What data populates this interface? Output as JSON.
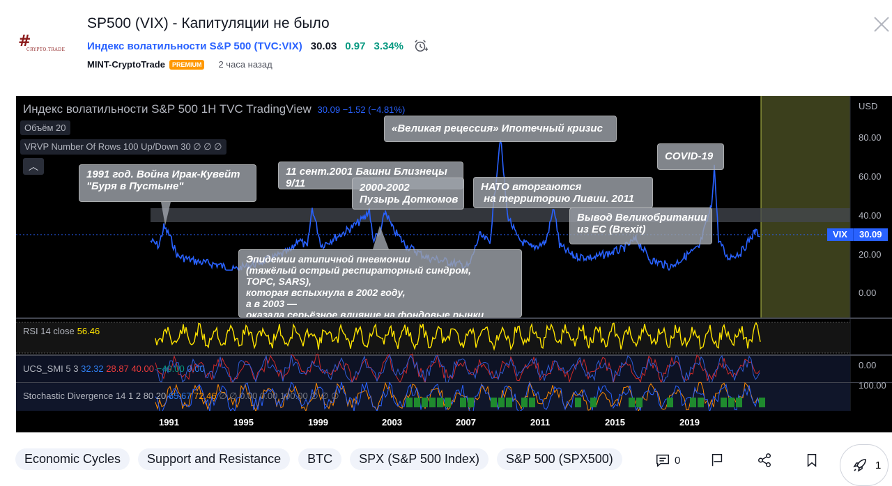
{
  "header": {
    "logo_text": "#",
    "logo_sub": "CRYPTO.TRADE",
    "title": "SP500 (VIX) - Капитуляции не было",
    "symbol": {
      "name": "Индекс волатильности S&P 500 (TVC:VIX)",
      "price": "30.03",
      "change": "0.97",
      "change_pct": "3.34%"
    },
    "author": "MINT-CryptoTrade",
    "badge": "PREMIUM",
    "time_ago": "2 часа назад"
  },
  "chart": {
    "legend_title": "Индекс волатильности S&P 500   1H   TVC   TradingView",
    "legend_value": "30.09  −1.52 (−4.81%)",
    "volume_label": "Объём 20",
    "vrvp_label": "VRVP Number Of Rows 100 Up/Down 30  ∅  ∅  ∅",
    "collapse_icon": "chevron-up-icon",
    "currency": "USD",
    "y_ticks": [
      "80.00",
      "60.00",
      "40.00",
      "20.00",
      "0.00"
    ],
    "vix_tag": {
      "name": "VIX",
      "value": "30.09"
    },
    "x_ticks": [
      "1991",
      "1995",
      "1999",
      "2003",
      "2007",
      "2011",
      "2015",
      "2019"
    ],
    "annotations": [
      {
        "id": "iraq",
        "text": "1991 год. Война Ирак-Кувейт\n\"Буря в Пустыне\""
      },
      {
        "id": "sept11",
        "text": "11 сент.2001 Башни Близнецы\n9/11"
      },
      {
        "id": "dotcom",
        "text": "2000-2002\nПузырь Доткомов"
      },
      {
        "id": "recession",
        "text": "«Великая рецессия» Ипотечный кризис"
      },
      {
        "id": "libya",
        "text": "НАТО вторгаются\n на территорию Ливии. 2011"
      },
      {
        "id": "covid",
        "text": "COVID-19"
      },
      {
        "id": "brexit",
        "text": "Вывод Великобритании\nиз ЕС (Brexit)"
      },
      {
        "id": "sars",
        "text": "Эпидемии атипичной пневмонии\n(тяжёлый острый респираторный синдром,\nТОРС, SARS),\nкоторая вспыхнула в 2002 году,\nа в 2003 —\nоказала серьёзное влияние на фондовые рынки"
      }
    ],
    "rsi": {
      "label": "RSI 14 close",
      "value": "56.46"
    },
    "ucs": {
      "label": "UCS_SMI 5 3",
      "v1": "32.32",
      "v2": "28.87",
      "v3": "40.00",
      "v4": "−40.00",
      "v5": "0.00",
      "axis": "0.00"
    },
    "stoch": {
      "label": "Stochastic Divergence 14 1 2 80 20",
      "v1": "65.67",
      "v2": "72.46",
      "v3": "∅  ∅  0.00  0.00  100.00  ∅  ∅  ∅",
      "axis": "100.00"
    }
  },
  "tags": [
    "Economic Cycles",
    "Support and Resistance",
    "BTC",
    "SPX (S&P 500 Index)",
    "S&P 500 (SPX500)"
  ],
  "actions": {
    "comments": "0",
    "boosts": "1"
  }
}
